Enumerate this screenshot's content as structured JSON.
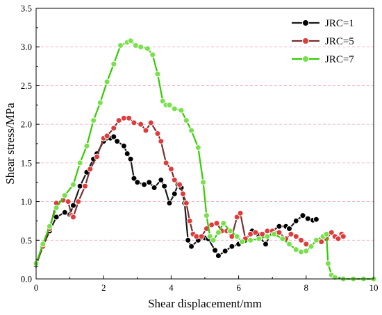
{
  "chart_data": {
    "type": "line",
    "xlabel": "Shear displacement/mm",
    "ylabel": "Shear stress/MPa",
    "xlim": [
      0,
      10
    ],
    "ylim": [
      0,
      3.5
    ],
    "x_ticks": [
      "0",
      "2",
      "4",
      "6",
      "8",
      "10"
    ],
    "y_ticks": [
      "0.0",
      "0.5",
      "1.0",
      "1.5",
      "2.0",
      "2.5",
      "3.0",
      "3.5"
    ],
    "grid": "dashed horizontal",
    "legend_position": "top-right",
    "series": [
      {
        "name": "JRC=1",
        "color": "#1a1a1a",
        "marker_fill": "#000000",
        "points": [
          [
            0.0,
            0.18
          ],
          [
            0.2,
            0.42
          ],
          [
            0.4,
            0.62
          ],
          [
            0.6,
            0.8
          ],
          [
            0.85,
            0.86
          ],
          [
            1.0,
            0.83
          ],
          [
            1.1,
            0.95
          ],
          [
            1.3,
            1.2
          ],
          [
            1.5,
            1.38
          ],
          [
            1.7,
            1.55
          ],
          [
            1.8,
            1.62
          ],
          [
            2.0,
            1.78
          ],
          [
            2.2,
            1.82
          ],
          [
            2.3,
            1.84
          ],
          [
            2.4,
            1.78
          ],
          [
            2.6,
            1.72
          ],
          [
            2.7,
            1.62
          ],
          [
            2.8,
            1.55
          ],
          [
            2.9,
            1.3
          ],
          [
            3.0,
            1.25
          ],
          [
            3.2,
            1.22
          ],
          [
            3.35,
            1.25
          ],
          [
            3.5,
            1.18
          ],
          [
            3.7,
            1.28
          ],
          [
            3.8,
            1.2
          ],
          [
            3.95,
            0.98
          ],
          [
            4.1,
            1.1
          ],
          [
            4.2,
            1.22
          ],
          [
            4.3,
            1.18
          ],
          [
            4.4,
            0.98
          ],
          [
            4.5,
            0.5
          ],
          [
            4.6,
            0.42
          ],
          [
            4.8,
            0.5
          ],
          [
            5.0,
            0.53
          ],
          [
            5.1,
            0.52
          ],
          [
            5.3,
            0.37
          ],
          [
            5.4,
            0.3
          ],
          [
            5.6,
            0.36
          ],
          [
            5.8,
            0.42
          ],
          [
            6.0,
            0.45
          ],
          [
            6.2,
            0.5
          ],
          [
            6.4,
            0.62
          ],
          [
            6.6,
            0.55
          ],
          [
            6.8,
            0.45
          ],
          [
            7.0,
            0.62
          ],
          [
            7.2,
            0.68
          ],
          [
            7.4,
            0.68
          ],
          [
            7.5,
            0.65
          ],
          [
            7.7,
            0.75
          ],
          [
            7.9,
            0.82
          ],
          [
            8.05,
            0.78
          ],
          [
            8.2,
            0.76
          ],
          [
            8.3,
            0.77
          ]
        ]
      },
      {
        "name": "JRC=5",
        "color": "#7a2e2e",
        "marker_fill": "#e03b3b",
        "points": [
          [
            0.0,
            0.2
          ],
          [
            0.2,
            0.42
          ],
          [
            0.4,
            0.65
          ],
          [
            0.6,
            0.98
          ],
          [
            0.8,
            1.02
          ],
          [
            0.95,
            1.0
          ],
          [
            1.05,
            0.82
          ],
          [
            1.1,
            0.8
          ],
          [
            1.25,
            1.0
          ],
          [
            1.45,
            1.2
          ],
          [
            1.6,
            1.42
          ],
          [
            1.8,
            1.58
          ],
          [
            2.0,
            1.82
          ],
          [
            2.1,
            1.85
          ],
          [
            2.3,
            1.95
          ],
          [
            2.45,
            2.05
          ],
          [
            2.6,
            2.08
          ],
          [
            2.75,
            2.08
          ],
          [
            2.9,
            2.02
          ],
          [
            3.1,
            2.0
          ],
          [
            3.25,
            1.92
          ],
          [
            3.4,
            2.02
          ],
          [
            3.6,
            1.88
          ],
          [
            3.7,
            1.78
          ],
          [
            3.85,
            1.5
          ],
          [
            4.0,
            1.42
          ],
          [
            4.1,
            1.28
          ],
          [
            4.25,
            1.22
          ],
          [
            4.35,
            1.1
          ],
          [
            4.45,
            0.98
          ],
          [
            4.55,
            0.75
          ],
          [
            4.65,
            0.58
          ],
          [
            4.75,
            0.55
          ],
          [
            4.9,
            0.55
          ],
          [
            5.05,
            0.65
          ],
          [
            5.2,
            0.7
          ],
          [
            5.35,
            0.72
          ],
          [
            5.5,
            0.62
          ],
          [
            5.65,
            0.62
          ],
          [
            5.8,
            0.55
          ],
          [
            5.95,
            0.8
          ],
          [
            6.05,
            0.85
          ],
          [
            6.2,
            0.52
          ],
          [
            6.35,
            0.58
          ],
          [
            6.5,
            0.6
          ],
          [
            6.7,
            0.58
          ],
          [
            6.85,
            0.62
          ],
          [
            7.0,
            0.62
          ],
          [
            7.2,
            0.6
          ],
          [
            7.4,
            0.52
          ],
          [
            7.55,
            0.58
          ],
          [
            7.7,
            0.55
          ],
          [
            7.85,
            0.5
          ],
          [
            8.0,
            0.45
          ],
          [
            8.15,
            0.42
          ],
          [
            8.3,
            0.5
          ],
          [
            8.45,
            0.48
          ],
          [
            8.6,
            0.52
          ],
          [
            8.75,
            0.6
          ],
          [
            8.85,
            0.55
          ],
          [
            8.95,
            0.52
          ],
          [
            9.05,
            0.58
          ],
          [
            9.1,
            0.55
          ]
        ]
      },
      {
        "name": "JRC=7",
        "color": "#33cc00",
        "marker_fill": "#77e04a",
        "points": [
          [
            0.0,
            0.2
          ],
          [
            0.2,
            0.45
          ],
          [
            0.4,
            0.68
          ],
          [
            0.6,
            0.92
          ],
          [
            0.85,
            1.08
          ],
          [
            1.1,
            1.22
          ],
          [
            1.3,
            1.5
          ],
          [
            1.5,
            1.72
          ],
          [
            1.7,
            2.05
          ],
          [
            1.9,
            2.28
          ],
          [
            2.1,
            2.55
          ],
          [
            2.3,
            2.78
          ],
          [
            2.5,
            3.02
          ],
          [
            2.7,
            3.06
          ],
          [
            2.8,
            3.08
          ],
          [
            2.95,
            3.02
          ],
          [
            3.1,
            3.0
          ],
          [
            3.3,
            2.98
          ],
          [
            3.45,
            2.9
          ],
          [
            3.6,
            2.65
          ],
          [
            3.75,
            2.3
          ],
          [
            3.85,
            2.25
          ],
          [
            3.95,
            2.25
          ],
          [
            4.1,
            2.2
          ],
          [
            4.3,
            2.18
          ],
          [
            4.45,
            2.05
          ],
          [
            4.6,
            1.92
          ],
          [
            4.8,
            1.7
          ],
          [
            4.95,
            1.25
          ],
          [
            5.05,
            0.82
          ],
          [
            5.15,
            0.55
          ],
          [
            5.25,
            0.5
          ],
          [
            5.4,
            0.6
          ],
          [
            5.55,
            0.72
          ],
          [
            5.75,
            0.62
          ],
          [
            5.95,
            0.55
          ],
          [
            6.1,
            0.48
          ],
          [
            6.35,
            0.5
          ],
          [
            6.6,
            0.52
          ],
          [
            6.85,
            0.55
          ],
          [
            7.05,
            0.58
          ],
          [
            7.3,
            0.52
          ],
          [
            7.5,
            0.45
          ],
          [
            7.7,
            0.38
          ],
          [
            7.85,
            0.35
          ],
          [
            8.0,
            0.36
          ],
          [
            8.15,
            0.42
          ],
          [
            8.3,
            0.5
          ],
          [
            8.5,
            0.55
          ],
          [
            8.6,
            0.58
          ],
          [
            8.65,
            0.2
          ],
          [
            8.75,
            0.05
          ],
          [
            8.85,
            0.02
          ],
          [
            9.1,
            0.0
          ],
          [
            9.4,
            0.0
          ],
          [
            9.7,
            0.0
          ],
          [
            10.0,
            0.0
          ]
        ]
      }
    ]
  }
}
